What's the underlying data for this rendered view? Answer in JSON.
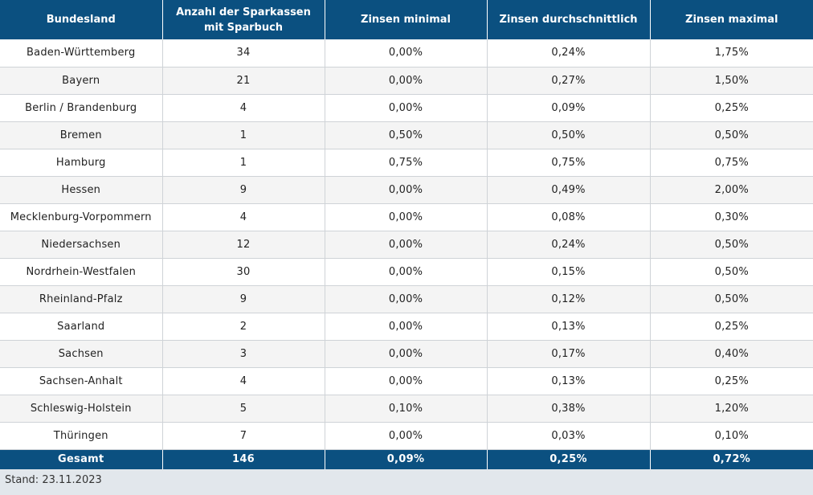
{
  "table": {
    "headers": [
      {
        "line1": "Bundesland",
        "line2": ""
      },
      {
        "line1": "Anzahl der Sparkassen",
        "line2": "mit Sparbuch"
      },
      {
        "line1": "Zinsen minimal",
        "line2": ""
      },
      {
        "line1": "Zinsen durchschnittlich",
        "line2": ""
      },
      {
        "line1": "Zinsen maximal",
        "line2": ""
      }
    ],
    "rows": [
      [
        "Baden-Württemberg",
        "34",
        "0,00%",
        "0,24%",
        "1,75%"
      ],
      [
        "Bayern",
        "21",
        "0,00%",
        "0,27%",
        "1,50%"
      ],
      [
        "Berlin / Brandenburg",
        "4",
        "0,00%",
        "0,09%",
        "0,25%"
      ],
      [
        "Bremen",
        "1",
        "0,50%",
        "0,50%",
        "0,50%"
      ],
      [
        "Hamburg",
        "1",
        "0,75%",
        "0,75%",
        "0,75%"
      ],
      [
        "Hessen",
        "9",
        "0,00%",
        "0,49%",
        "2,00%"
      ],
      [
        "Mecklenburg-Vorpommern",
        "4",
        "0,00%",
        "0,08%",
        "0,30%"
      ],
      [
        "Niedersachsen",
        "12",
        "0,00%",
        "0,24%",
        "0,50%"
      ],
      [
        "Nordrhein-Westfalen",
        "30",
        "0,00%",
        "0,15%",
        "0,50%"
      ],
      [
        "Rheinland-Pfalz",
        "9",
        "0,00%",
        "0,12%",
        "0,50%"
      ],
      [
        "Saarland",
        "2",
        "0,00%",
        "0,13%",
        "0,25%"
      ],
      [
        "Sachsen",
        "3",
        "0,00%",
        "0,17%",
        "0,40%"
      ],
      [
        "Sachsen-Anhalt",
        "4",
        "0,00%",
        "0,13%",
        "0,25%"
      ],
      [
        "Schleswig-Holstein",
        "5",
        "0,10%",
        "0,38%",
        "1,20%"
      ],
      [
        "Thüringen",
        "7",
        "0,00%",
        "0,03%",
        "0,10%"
      ]
    ],
    "total": [
      "Gesamt",
      "146",
      "0,09%",
      "0,25%",
      "0,72%"
    ]
  },
  "footer": {
    "stand": "Stand: 23.11.2023"
  },
  "colors": {
    "header_bg": "#0b5080",
    "header_text": "#ffffff",
    "row_alt_bg": "#f4f4f4",
    "footer_bg": "#e2e7ec"
  }
}
